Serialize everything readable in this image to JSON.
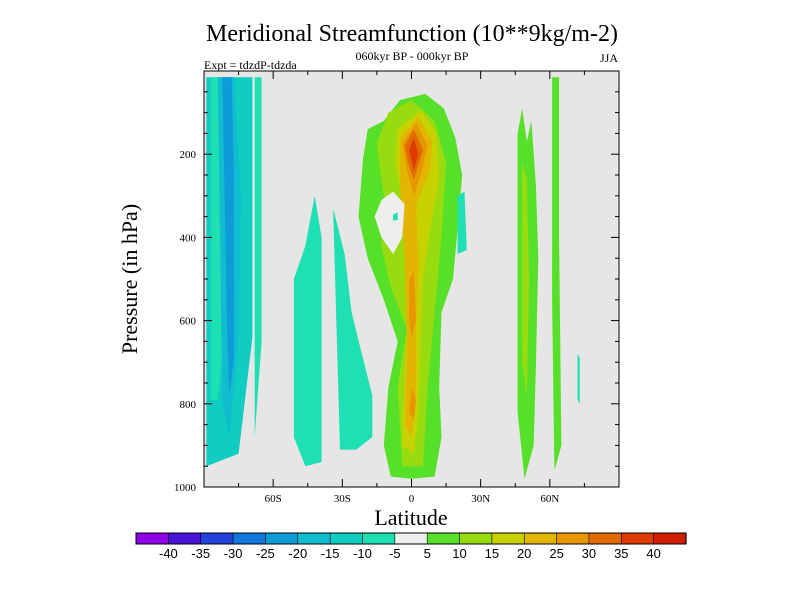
{
  "chart_data": {
    "type": "heatmap",
    "title": "Meridional Streamfunction (10**9kg/m-2)",
    "subtitle_left": "Expt = tdzdP-tdzda",
    "subtitle_center": "060kyr BP - 000kyr BP",
    "subtitle_right": "JJA",
    "xlabel": "Latitude",
    "ylabel": "Pressure (in hPa)",
    "xlim": [
      -90,
      90
    ],
    "ylim": [
      0,
      1000
    ],
    "xticks": [
      -60,
      -30,
      0,
      30,
      60
    ],
    "xtick_labels": [
      "60S",
      "30S",
      "0",
      "30N",
      "60N"
    ],
    "yticks": [
      200,
      400,
      600,
      800,
      1000
    ],
    "ytick_labels": [
      "200",
      "400",
      "600",
      "800",
      "1000"
    ],
    "background_color": "#e6e6e6",
    "colorbar": {
      "levels": [
        -40,
        -35,
        -30,
        -25,
        -20,
        -15,
        -10,
        -5,
        5,
        10,
        15,
        20,
        25,
        30,
        35,
        40
      ],
      "labels": [
        "-40",
        "-35",
        "-30",
        "-25",
        "-20",
        "-15",
        "-10",
        "-5",
        "5",
        "10",
        "15",
        "20",
        "25",
        "30",
        "35",
        "40"
      ],
      "colors": [
        "#8e00e6",
        "#4a14d6",
        "#2244dd",
        "#1177dd",
        "#0f9ad8",
        "#10bcd0",
        "#11ccc0",
        "#1ee0b2",
        "#eeeeee",
        "#57e02a",
        "#98dc10",
        "#c8d200",
        "#e2b600",
        "#e69700",
        "#e26a00",
        "#dd3b00",
        "#d21e00"
      ]
    },
    "regions": [
      {
        "value": -15,
        "points": [
          [
            -89,
            15
          ],
          [
            -69,
            15
          ],
          [
            -69,
            640
          ],
          [
            -75,
            920
          ],
          [
            -89,
            950
          ]
        ]
      },
      {
        "value": -10,
        "points": [
          [
            -87,
            15
          ],
          [
            -78,
            15
          ],
          [
            -77,
            420
          ],
          [
            -84,
            790
          ],
          [
            -87,
            790
          ]
        ]
      },
      {
        "value": -20,
        "points": [
          [
            -84,
            15
          ],
          [
            -77,
            15
          ],
          [
            -74,
            300
          ],
          [
            -75,
            630
          ],
          [
            -79,
            880
          ],
          [
            -82,
            800
          ]
        ]
      },
      {
        "value": -25,
        "points": [
          [
            -82,
            15
          ],
          [
            -78,
            15
          ],
          [
            -77,
            250
          ],
          [
            -77,
            690
          ],
          [
            -79,
            780
          ],
          [
            -80,
            620
          ]
        ]
      },
      {
        "value": -10,
        "points": [
          [
            -68,
            15
          ],
          [
            -65,
            15
          ],
          [
            -65,
            650
          ],
          [
            -68,
            880
          ]
        ]
      },
      {
        "value": -10,
        "points": [
          [
            -51,
            500
          ],
          [
            -46,
            420
          ],
          [
            -42,
            300
          ],
          [
            -39,
            400
          ],
          [
            -39,
            940
          ],
          [
            -46,
            950
          ],
          [
            -51,
            880
          ]
        ]
      },
      {
        "value": -10,
        "points": [
          [
            -34,
            330
          ],
          [
            -29,
            440
          ],
          [
            -26,
            580
          ],
          [
            -22,
            670
          ],
          [
            -17,
            780
          ],
          [
            -17,
            880
          ],
          [
            -24,
            910
          ],
          [
            -31,
            910
          ]
        ]
      },
      {
        "value": 5,
        "points": [
          [
            -21,
            210
          ],
          [
            -19,
            140
          ],
          [
            -12,
            120
          ],
          [
            -5,
            70
          ],
          [
            6,
            55
          ],
          [
            14,
            90
          ],
          [
            19,
            160
          ],
          [
            22,
            250
          ],
          [
            20,
            380
          ],
          [
            18,
            500
          ],
          [
            13,
            580
          ],
          [
            12,
            760
          ],
          [
            13,
            880
          ],
          [
            10,
            975
          ],
          [
            0,
            980
          ],
          [
            -9,
            975
          ],
          [
            -12,
            900
          ],
          [
            -10,
            760
          ],
          [
            -6,
            650
          ],
          [
            -12,
            550
          ],
          [
            -19,
            450
          ],
          [
            -23,
            350
          ]
        ]
      },
      {
        "value": 10,
        "points": [
          [
            -15,
            175
          ],
          [
            -10,
            100
          ],
          [
            0,
            70
          ],
          [
            10,
            120
          ],
          [
            15,
            220
          ],
          [
            13,
            400
          ],
          [
            10,
            580
          ],
          [
            7,
            760
          ],
          [
            5,
            950
          ],
          [
            -4,
            950
          ],
          [
            -6,
            760
          ],
          [
            -2,
            620
          ],
          [
            -9,
            520
          ],
          [
            -13,
            420
          ],
          [
            -12,
            300
          ]
        ]
      },
      {
        "value": 15,
        "points": [
          [
            -6,
            140
          ],
          [
            4,
            95
          ],
          [
            11,
            150
          ],
          [
            12,
            260
          ],
          [
            8,
            380
          ],
          [
            5,
            500
          ],
          [
            4,
            650
          ],
          [
            3,
            820
          ],
          [
            1,
            920
          ],
          [
            -4,
            900
          ],
          [
            -3,
            730
          ],
          [
            -1,
            500
          ],
          [
            -4,
            300
          ],
          [
            -7,
            220
          ]
        ]
      },
      {
        "value": 20,
        "points": [
          [
            -5,
            160
          ],
          [
            3,
            110
          ],
          [
            9,
            170
          ],
          [
            8,
            240
          ],
          [
            2,
            320
          ],
          [
            3,
            450
          ],
          [
            2,
            600
          ],
          [
            2,
            780
          ],
          [
            0,
            880
          ],
          [
            -3,
            850
          ],
          [
            -2,
            650
          ],
          [
            -3,
            450
          ],
          [
            -5,
            280
          ]
        ]
      },
      {
        "value": 25,
        "points": [
          [
            -4,
            175
          ],
          [
            2,
            125
          ],
          [
            7,
            180
          ],
          [
            4,
            250
          ],
          [
            1,
            300
          ],
          [
            -2,
            240
          ]
        ]
      },
      {
        "value": 25,
        "points": [
          [
            -1,
            500
          ],
          [
            1,
            480
          ],
          [
            2,
            600
          ],
          [
            0,
            640
          ],
          [
            -1,
            600
          ]
        ]
      },
      {
        "value": 25,
        "points": [
          [
            0,
            760
          ],
          [
            2,
            790
          ],
          [
            1,
            840
          ],
          [
            -1,
            820
          ]
        ]
      },
      {
        "value": 30,
        "points": [
          [
            -3,
            180
          ],
          [
            1,
            140
          ],
          [
            5,
            190
          ],
          [
            1,
            260
          ],
          [
            -1,
            230
          ]
        ]
      },
      {
        "value": 35,
        "points": [
          [
            -1,
            190
          ],
          [
            1,
            160
          ],
          [
            3,
            200
          ],
          [
            1,
            240
          ]
        ]
      },
      {
        "value": -5,
        "points": [
          [
            -13,
            310
          ],
          [
            -8,
            290
          ],
          [
            -3,
            320
          ],
          [
            -4,
            400
          ],
          [
            -8,
            440
          ],
          [
            -13,
            400
          ],
          [
            -16,
            350
          ]
        ]
      },
      {
        "value": -10,
        "points": [
          [
            -8,
            345
          ],
          [
            -6,
            340
          ],
          [
            -6,
            358
          ],
          [
            -8,
            360
          ]
        ]
      },
      {
        "value": -10,
        "points": [
          [
            20,
            300
          ],
          [
            23,
            290
          ],
          [
            24,
            430
          ],
          [
            20,
            440
          ]
        ]
      },
      {
        "value": 5,
        "points": [
          [
            46,
            150
          ],
          [
            48,
            90
          ],
          [
            50,
            170
          ],
          [
            52,
            120
          ],
          [
            54,
            280
          ],
          [
            55,
            450
          ],
          [
            54,
            700
          ],
          [
            53,
            900
          ],
          [
            49,
            980
          ],
          [
            46,
            820
          ],
          [
            46,
            450
          ]
        ]
      },
      {
        "value": 10,
        "points": [
          [
            48,
            220
          ],
          [
            50,
            260
          ],
          [
            51,
            500
          ],
          [
            50,
            780
          ],
          [
            48,
            700
          ],
          [
            48,
            420
          ]
        ]
      },
      {
        "value": 5,
        "points": [
          [
            61,
            15
          ],
          [
            64,
            15
          ],
          [
            64,
            400
          ],
          [
            65,
            900
          ],
          [
            62,
            960
          ],
          [
            61,
            550
          ]
        ]
      },
      {
        "value": -10,
        "points": [
          [
            72,
            680
          ],
          [
            73,
            690
          ],
          [
            73,
            800
          ],
          [
            72,
            790
          ]
        ]
      }
    ]
  }
}
